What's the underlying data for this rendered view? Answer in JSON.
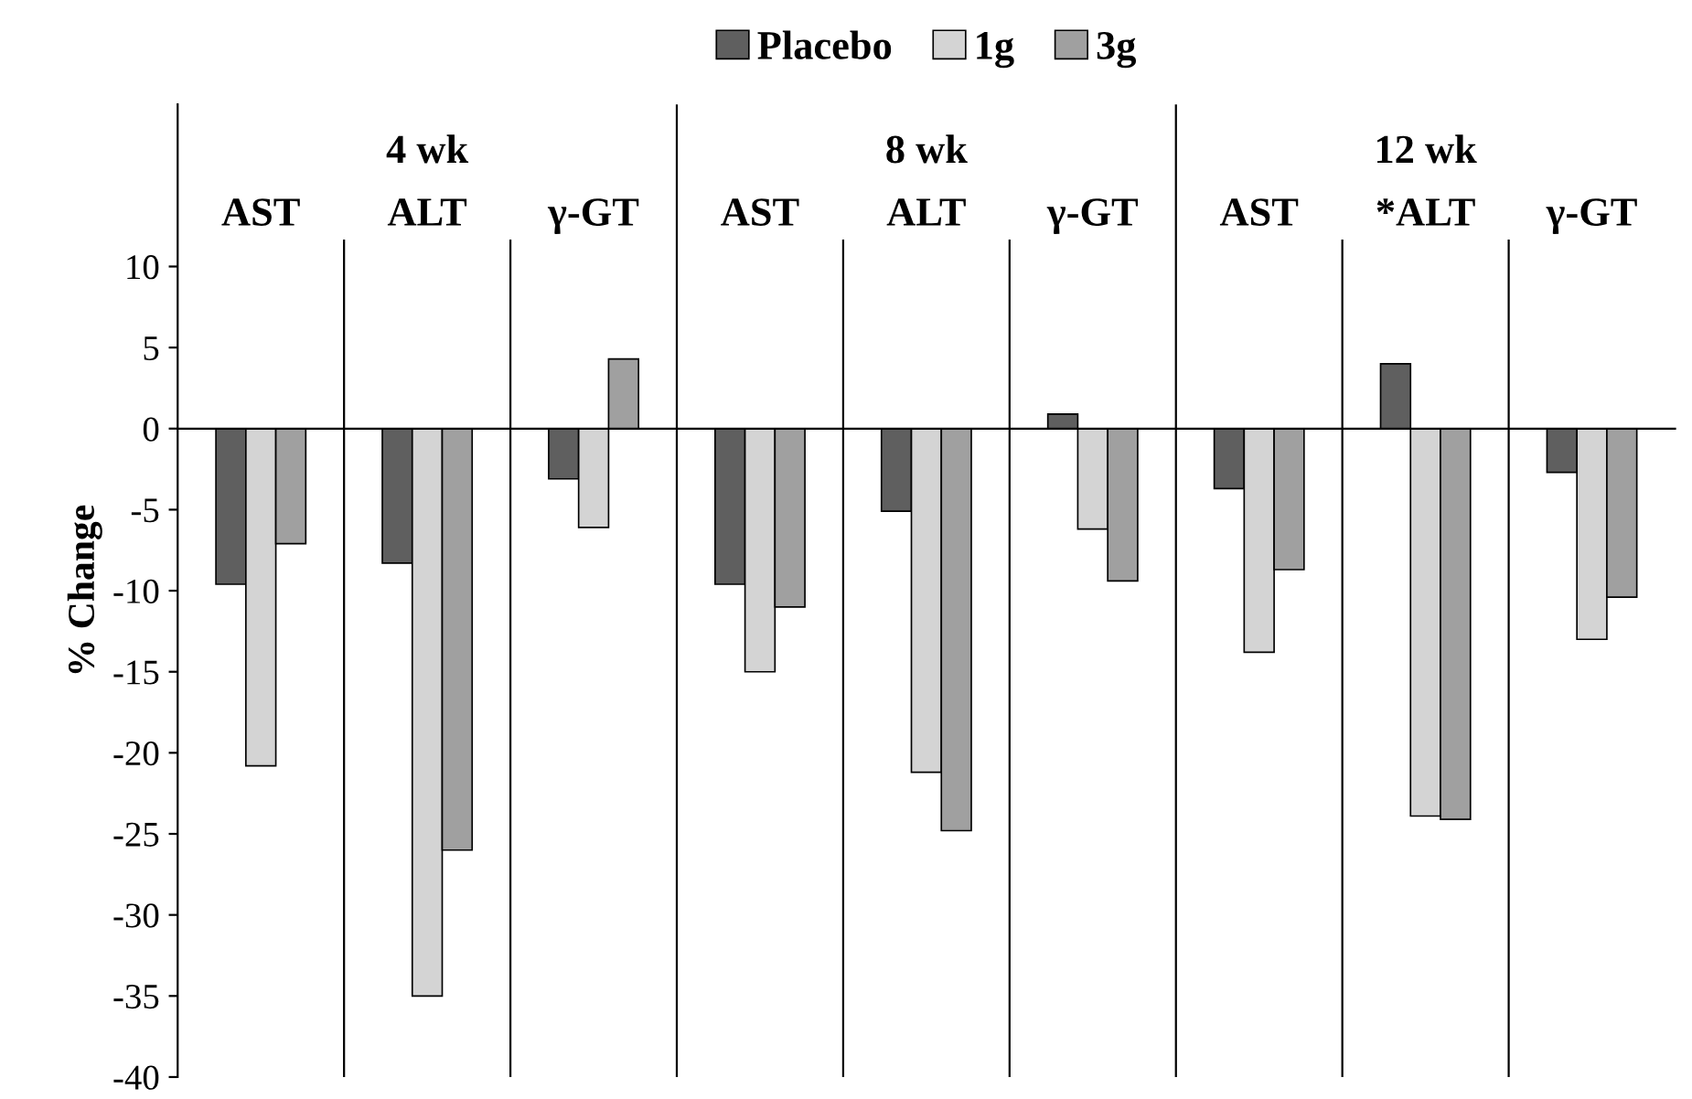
{
  "chart_data": {
    "type": "bar",
    "ylabel": "% Change",
    "categories": [
      "AST",
      "ALT",
      "γ-GT",
      "AST",
      "ALT",
      "γ-GT",
      "AST",
      "*ALT",
      "γ-GT"
    ],
    "series": [
      {
        "name": "Placebo",
        "color": "#5f5f5f",
        "values": [
          -9.6,
          -8.3,
          -3.1,
          -9.6,
          -5.1,
          0.9,
          -3.7,
          4,
          -2.7
        ]
      },
      {
        "name": "1g",
        "color": "#d4d4d4",
        "values": [
          -20.8,
          -35,
          -6.1,
          -15,
          -21.2,
          -6.2,
          -13.8,
          -23.9,
          -13
        ]
      },
      {
        "name": "3g",
        "color": "#a0a0a0",
        "values": [
          -7.1,
          -26,
          4.3,
          -11,
          -24.8,
          -9.4,
          -8.7,
          -24.1,
          -10.4
        ]
      }
    ],
    "annotations": [
      "4 wk",
      "8 wk",
      "12 wk"
    ],
    "ylim": [
      -40,
      20
    ],
    "yticks": [
      10,
      5,
      0,
      -5,
      -10,
      -15,
      -20,
      -25,
      -30,
      -35,
      -40
    ],
    "legend": "top",
    "tick_labels": "y"
  }
}
